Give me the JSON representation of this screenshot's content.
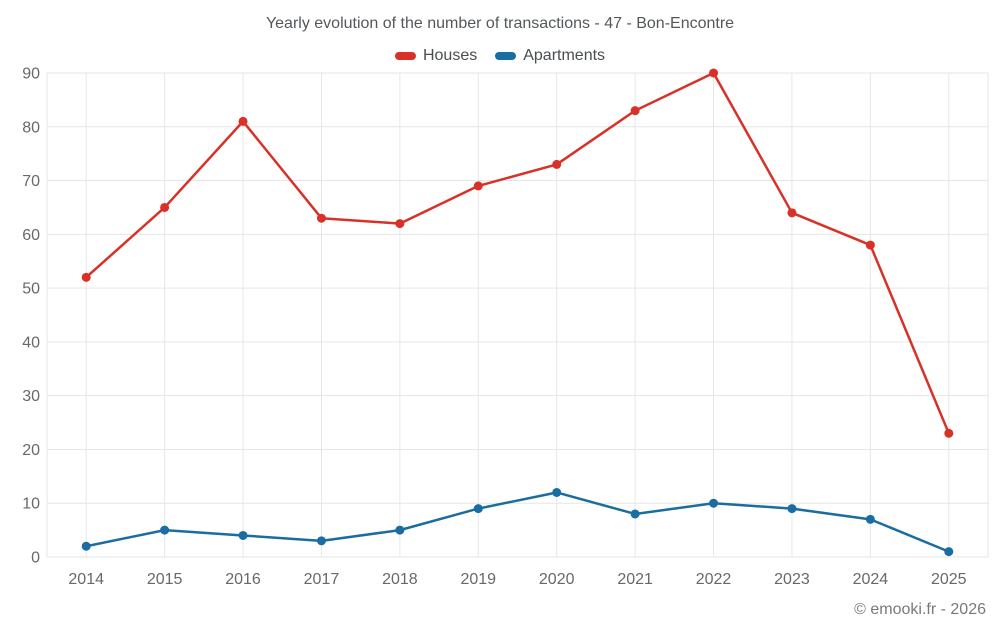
{
  "chart": {
    "title": "Yearly evolution of the number of transactions - 47 - Bon-Encontre",
    "credit": "© emooki.fr - 2026"
  },
  "chart_data": {
    "type": "line",
    "categories": [
      "2014",
      "2015",
      "2016",
      "2017",
      "2018",
      "2019",
      "2020",
      "2021",
      "2022",
      "2023",
      "2024",
      "2025"
    ],
    "series": [
      {
        "name": "Houses",
        "color": "#d93027",
        "values": [
          52,
          65,
          81,
          63,
          62,
          69,
          73,
          83,
          90,
          64,
          58,
          23
        ]
      },
      {
        "name": "Apartments",
        "color": "#1a6da1",
        "values": [
          2,
          5,
          4,
          3,
          5,
          9,
          12,
          8,
          10,
          9,
          7,
          1
        ]
      }
    ],
    "title": "Yearly evolution of the number of transactions - 47 - Bon-Encontre",
    "xlabel": "",
    "ylabel": "",
    "ylim": [
      0,
      90
    ],
    "ytick_step": 10,
    "grid": true,
    "legend_position": "top"
  },
  "colors": {
    "grid": "#e6e6e6",
    "axis_text": "#66696c",
    "title_text": "#54585b",
    "legend_text": "#4a4e51",
    "credit_text": "#77797b",
    "background": "#ffffff"
  }
}
